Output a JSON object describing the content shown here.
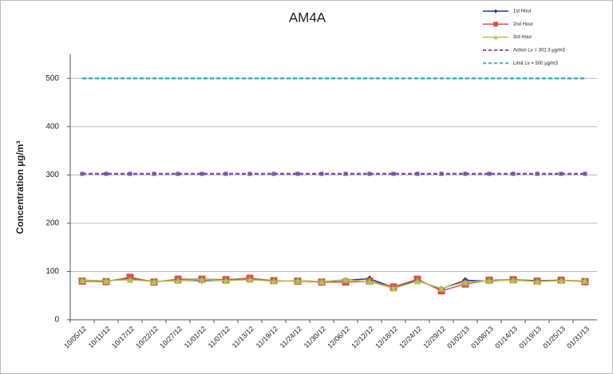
{
  "chart_data": {
    "type": "line",
    "title": "AM4A",
    "y_label": "Concentration µg/m³",
    "categories": [
      "10/05/12",
      "10/11/12",
      "10/17/12",
      "10/22/12",
      "10/27/12",
      "11/01/12",
      "11/07/12",
      "11/13/12",
      "11/19/12",
      "11/24/12",
      "11/30/12",
      "12/06/12",
      "12/12/12",
      "12/18/12",
      "12/24/12",
      "12/29/12",
      "01/02/13",
      "01/08/13",
      "01/14/13",
      "01/19/13",
      "01/25/13",
      "01/31/13"
    ],
    "series": [
      {
        "name": "1st Hour",
        "color": "#1f3a93",
        "marker": "diamond",
        "values": [
          82,
          80,
          86,
          79,
          82,
          81,
          82,
          84,
          80,
          81,
          79,
          82,
          85,
          67,
          81,
          64,
          82,
          80,
          83,
          81,
          82,
          80
        ]
      },
      {
        "name": "2nd Hour",
        "color": "#d9534f",
        "marker": "square",
        "values": [
          80,
          79,
          88,
          78,
          84,
          84,
          83,
          86,
          81,
          80,
          78,
          78,
          80,
          68,
          84,
          60,
          74,
          82,
          83,
          80,
          82,
          79
        ]
      },
      {
        "name": "3rd Hour",
        "color": "#a8c94a",
        "marker": "triangle",
        "values": [
          82,
          81,
          83,
          79,
          81,
          83,
          81,
          83,
          80,
          81,
          79,
          83,
          79,
          65,
          80,
          65,
          78,
          81,
          82,
          79,
          81,
          81
        ]
      },
      {
        "name": "Action Lv = 302.3 µg/m3",
        "color": "#7b52ab",
        "dashed": true,
        "marker": "square",
        "values": [
          302.3,
          302.3,
          302.3,
          302.3,
          302.3,
          302.3,
          302.3,
          302.3,
          302.3,
          302.3,
          302.3,
          302.3,
          302.3,
          302.3,
          302.3,
          302.3,
          302.3,
          302.3,
          302.3,
          302.3,
          302.3,
          302.3
        ]
      },
      {
        "name": "Limit Lv = 500 µg/m3",
        "color": "#33b5c8",
        "dashed": true,
        "values": [
          500,
          500,
          500,
          500,
          500,
          500,
          500,
          500,
          500,
          500,
          500,
          500,
          500,
          500,
          500,
          500,
          500,
          500,
          500,
          500,
          500,
          500
        ]
      }
    ],
    "ylim": [
      0,
      550
    ],
    "yticks": [
      0,
      100,
      200,
      300,
      400,
      500
    ],
    "grid": true,
    "legend": "top-right"
  }
}
